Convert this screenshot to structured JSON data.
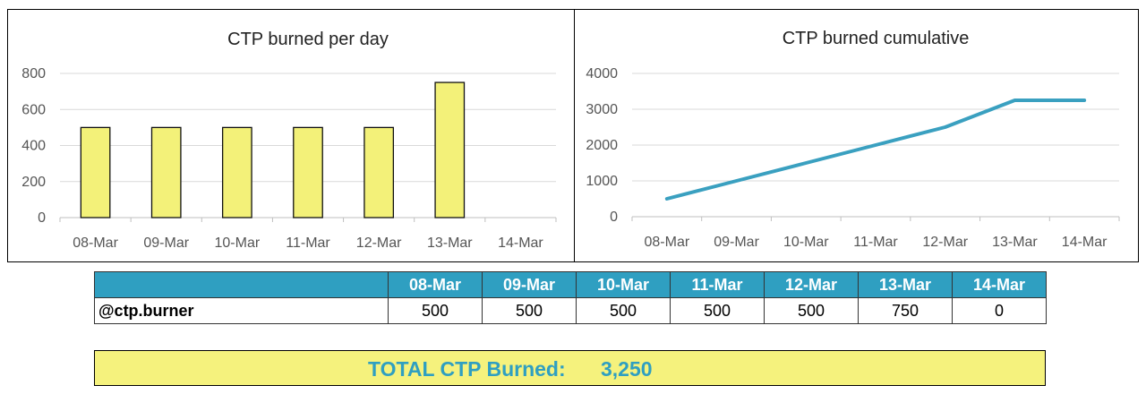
{
  "colors": {
    "bar_fill": "#f3f179",
    "bar_stroke": "#111111",
    "line": "#3aa0c0",
    "grid": "#d9d9d9",
    "header_bg": "#2f9fc1",
    "total_bg": "#f5f27d"
  },
  "chart_data": [
    {
      "type": "bar",
      "title": "CTP burned per day",
      "categories": [
        "08-Mar",
        "09-Mar",
        "10-Mar",
        "11-Mar",
        "12-Mar",
        "13-Mar",
        "14-Mar"
      ],
      "values": [
        500,
        500,
        500,
        500,
        500,
        750,
        0
      ],
      "yticks": [
        0,
        200,
        400,
        600,
        800
      ],
      "ylim": [
        0,
        800
      ],
      "xlabel": "",
      "ylabel": "",
      "grid": true
    },
    {
      "type": "line",
      "title": "CTP burned cumulative",
      "categories": [
        "08-Mar",
        "09-Mar",
        "10-Mar",
        "11-Mar",
        "12-Mar",
        "13-Mar",
        "14-Mar"
      ],
      "values": [
        500,
        1000,
        1500,
        2000,
        2500,
        3250,
        3250
      ],
      "yticks": [
        0,
        1000,
        2000,
        3000,
        4000
      ],
      "ylim": [
        0,
        4000
      ],
      "xlabel": "",
      "ylabel": "",
      "grid": true
    }
  ],
  "table": {
    "headers": [
      "",
      "08-Mar",
      "09-Mar",
      "10-Mar",
      "11-Mar",
      "12-Mar",
      "13-Mar",
      "14-Mar"
    ],
    "row_label": "@ctp.burner",
    "values": [
      "500",
      "500",
      "500",
      "500",
      "500",
      "750",
      "0"
    ]
  },
  "total": {
    "label": "TOTAL CTP Burned:",
    "value": "3,250"
  }
}
